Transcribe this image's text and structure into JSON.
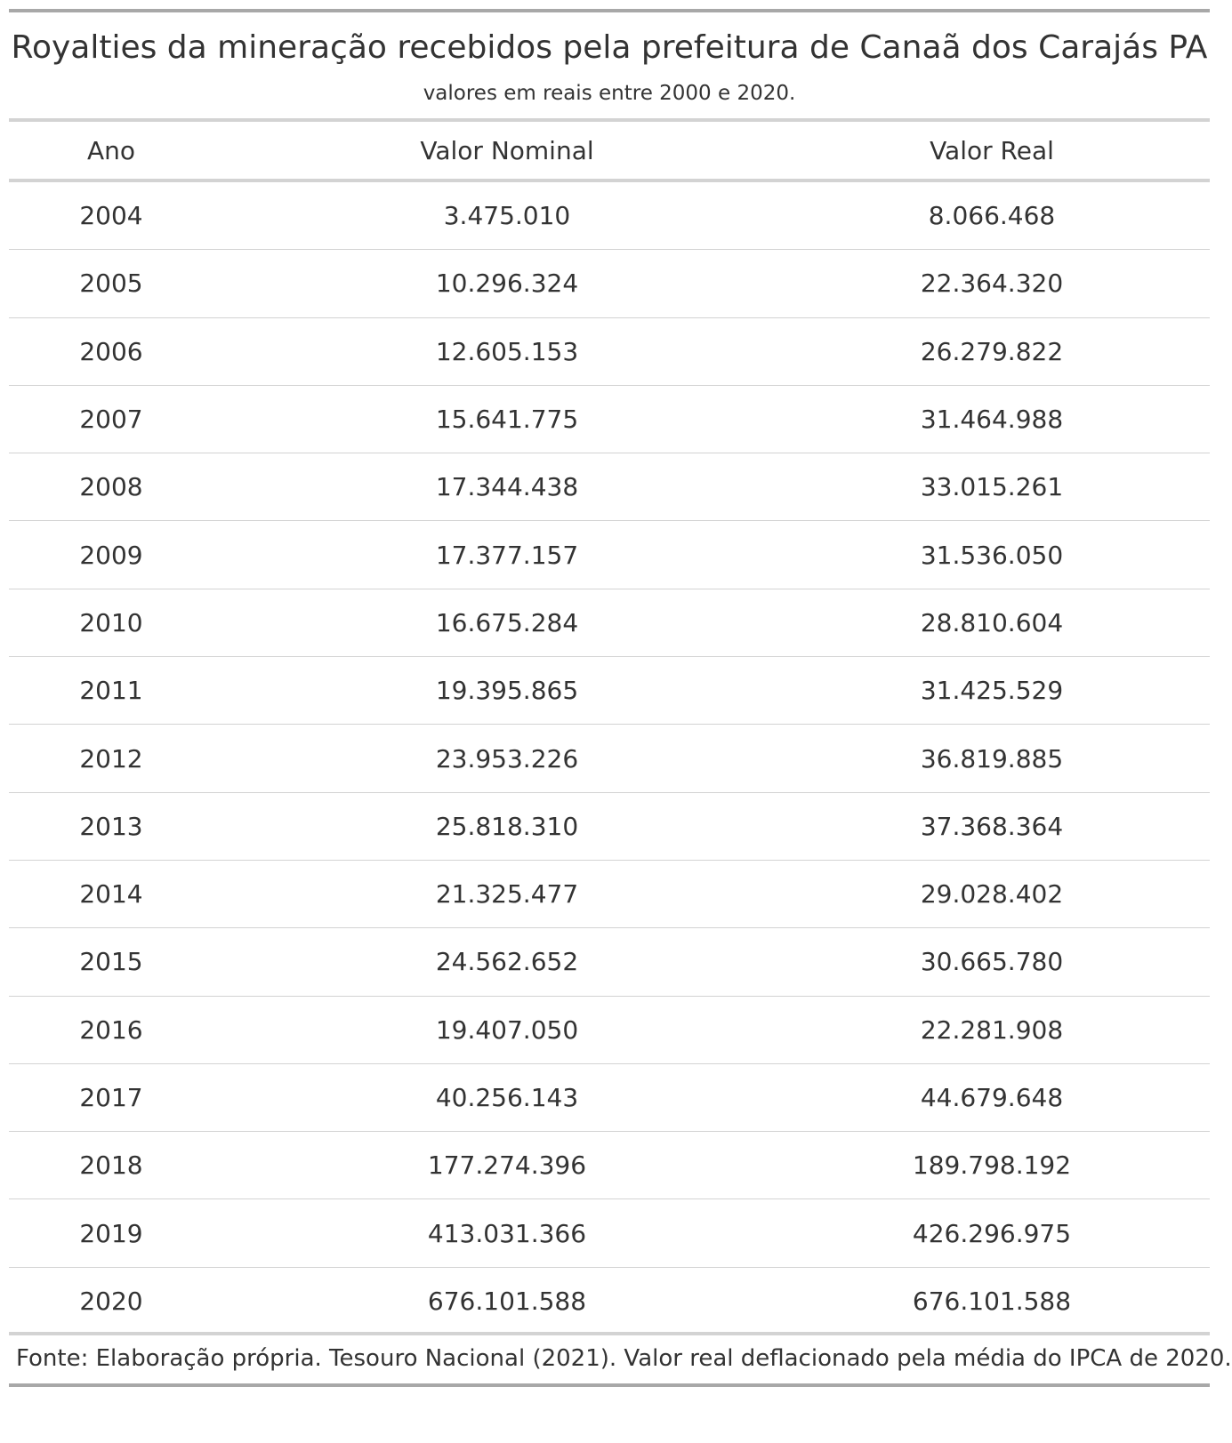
{
  "table": {
    "title": "Royalties da mineração recebidos pela prefeitura de Canaã dos Carajás PA",
    "subtitle": "valores em reais entre 2000 e 2020.",
    "columns": [
      "Ano",
      "Valor Nominal",
      "Valor Real"
    ],
    "rows": [
      [
        "2004",
        "3.475.010",
        "8.066.468"
      ],
      [
        "2005",
        "10.296.324",
        "22.364.320"
      ],
      [
        "2006",
        "12.605.153",
        "26.279.822"
      ],
      [
        "2007",
        "15.641.775",
        "31.464.988"
      ],
      [
        "2008",
        "17.344.438",
        "33.015.261"
      ],
      [
        "2009",
        "17.377.157",
        "31.536.050"
      ],
      [
        "2010",
        "16.675.284",
        "28.810.604"
      ],
      [
        "2011",
        "19.395.865",
        "31.425.529"
      ],
      [
        "2012",
        "23.953.226",
        "36.819.885"
      ],
      [
        "2013",
        "25.818.310",
        "37.368.364"
      ],
      [
        "2014",
        "21.325.477",
        "29.028.402"
      ],
      [
        "2015",
        "24.562.652",
        "30.665.780"
      ],
      [
        "2016",
        "19.407.050",
        "22.281.908"
      ],
      [
        "2017",
        "40.256.143",
        "44.679.648"
      ],
      [
        "2018",
        "177.274.396",
        "189.798.192"
      ],
      [
        "2019",
        "413.031.366",
        "426.296.975"
      ],
      [
        "2020",
        "676.101.588",
        "676.101.588"
      ]
    ],
    "footnote": "Fonte: Elaboração própria. Tesouro Nacional (2021). Valor real deflacionado pela média do IPCA de 2020."
  },
  "colors": {
    "text": "#333333",
    "outer_rule": "#a8a8a8",
    "inner_rule": "#d3d3d3"
  }
}
